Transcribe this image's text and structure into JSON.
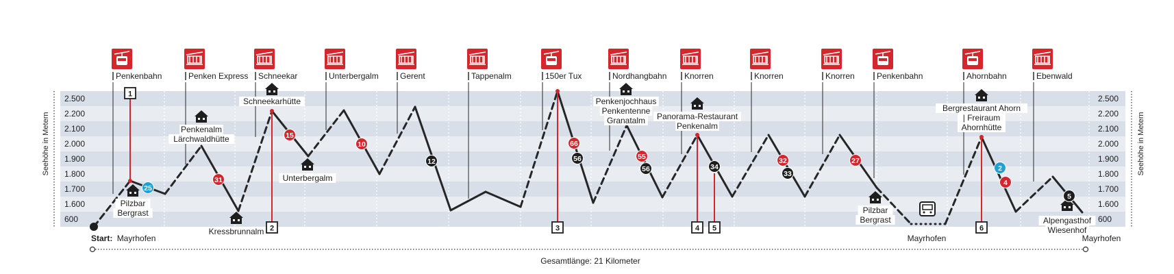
{
  "axis": {
    "left_label": "Seehöhe in Metern",
    "right_label": "Seehöhe in Metern",
    "ticks": [
      "2.500",
      "2.200",
      "2.100",
      "2.000",
      "1.900",
      "1.800",
      "1.700",
      "1.600",
      "600"
    ]
  },
  "footer": {
    "start_label": "Start:",
    "start_place": "Mayrhofen",
    "mid_place": "Mayrhofen",
    "end_place": "Mayrhofen",
    "total_length": "Gesamtlänge: 21 Kilometer"
  },
  "lifts": [
    {
      "name": "Penkenbahn",
      "type": "cable-car"
    },
    {
      "name": "Penken Express",
      "type": "chairlift"
    },
    {
      "name": "Schneekar",
      "type": "chairlift"
    },
    {
      "name": "Unterbergalm",
      "type": "chairlift"
    },
    {
      "name": "Gerent",
      "type": "chairlift"
    },
    {
      "name": "Tappenalm",
      "type": "chairlift"
    },
    {
      "name": "150er Tux",
      "type": "cable-car"
    },
    {
      "name": "Nordhangbahn",
      "type": "chairlift"
    },
    {
      "name": "Knorren",
      "type": "chairlift"
    },
    {
      "name": "Knorren",
      "type": "chairlift"
    },
    {
      "name": "Knorren",
      "type": "chairlift"
    },
    {
      "name": "Penkenbahn",
      "type": "cable-car"
    },
    {
      "name": "Ahornbahn",
      "type": "cable-car"
    },
    {
      "name": "Ebenwald",
      "type": "chairlift"
    }
  ],
  "huts": [
    {
      "lines": [
        "Pilzbar",
        "Bergrast"
      ]
    },
    {
      "lines": [
        "Penkenalm",
        "Lärchwaldhütte"
      ]
    },
    {
      "lines": [
        "Kressbrunnalm"
      ]
    },
    {
      "lines": [
        "Schneekarhütte"
      ]
    },
    {
      "lines": [
        "Unterbergalm"
      ]
    },
    {
      "lines": [
        "Penkenjochhaus",
        "Penkentenne",
        "Granatalm"
      ]
    },
    {
      "lines": [
        "Panorama-Restaurant",
        "Penkenalm"
      ]
    },
    {
      "lines": [
        "Pilzbar",
        "Bergrast"
      ]
    },
    {
      "lines": [
        "Bergrestaurant Ahorn",
        "| Freiraum",
        "Ahornhütte"
      ]
    },
    {
      "lines": [
        "Alpengasthof",
        "Wiesenhof"
      ]
    }
  ],
  "waypoints": [
    "1",
    "2",
    "3",
    "4",
    "5",
    "6"
  ],
  "slopes": [
    {
      "number": "25",
      "difficulty": "blue"
    },
    {
      "number": "31",
      "difficulty": "red"
    },
    {
      "number": "15",
      "difficulty": "red"
    },
    {
      "number": "10",
      "difficulty": "red"
    },
    {
      "number": "12",
      "difficulty": "black"
    },
    {
      "number": "66",
      "difficulty": "red"
    },
    {
      "number": "56",
      "difficulty": "black"
    },
    {
      "number": "55",
      "difficulty": "red"
    },
    {
      "number": "56",
      "difficulty": "black"
    },
    {
      "number": "34",
      "difficulty": "black"
    },
    {
      "number": "32",
      "difficulty": "red"
    },
    {
      "number": "33",
      "difficulty": "black"
    },
    {
      "number": "27",
      "difficulty": "red"
    },
    {
      "number": "2",
      "difficulty": "blue"
    },
    {
      "number": "4",
      "difficulty": "red"
    },
    {
      "number": "5",
      "difficulty": "black"
    }
  ],
  "colors": {
    "band_dark": "#d8dfe8",
    "band_light": "#e9edf2",
    "lift_red": "#d5262b",
    "red": "#d5262b",
    "blue": "#1ea1d6",
    "black": "#1e1e1e",
    "line": "#262626"
  }
}
